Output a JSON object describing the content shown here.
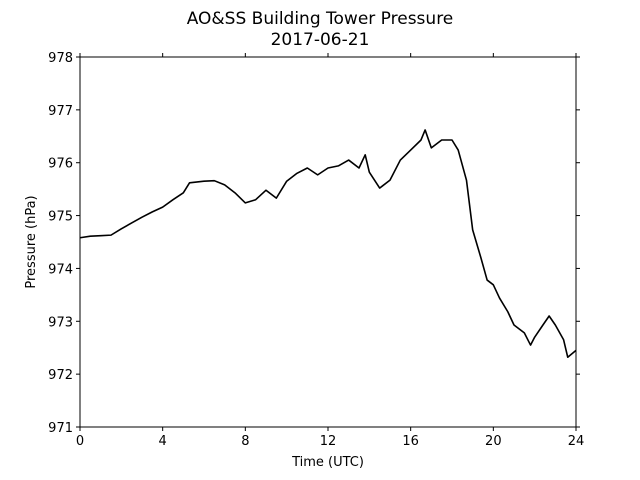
{
  "chart_data": {
    "type": "line",
    "title": "AO&SS Building Tower Pressure",
    "subtitle": "2017-06-21",
    "x_label": "Time (UTC)",
    "y_label": "Pressure (hPa)",
    "color": "#000000",
    "x": [
      0,
      0.5,
      1,
      1.5,
      2,
      2.5,
      3,
      3.5,
      4,
      4.5,
      5,
      5.3,
      6,
      6.5,
      7,
      7.5,
      8,
      8.5,
      9,
      9.5,
      10,
      10.5,
      11,
      11.5,
      12,
      12.5,
      13,
      13.5,
      13.8,
      14,
      14.5,
      15,
      15.5,
      16,
      16.5,
      16.7,
      17,
      17.5,
      18,
      18.3,
      18.7,
      19,
      19.4,
      19.7,
      20,
      20.3,
      20.7,
      21,
      21.5,
      21.8,
      22,
      22.4,
      22.7,
      23,
      23.4,
      23.6,
      24
    ],
    "values": [
      974.58,
      974.61,
      974.62,
      974.63,
      974.75,
      974.86,
      974.97,
      975.07,
      975.16,
      975.3,
      975.43,
      975.62,
      975.65,
      975.66,
      975.58,
      975.43,
      975.24,
      975.3,
      975.48,
      975.33,
      975.65,
      975.8,
      975.9,
      975.77,
      975.9,
      975.94,
      976.05,
      975.9,
      976.15,
      975.82,
      975.52,
      975.67,
      976.05,
      976.24,
      976.43,
      976.62,
      976.28,
      976.43,
      976.43,
      976.24,
      975.67,
      974.73,
      974.2,
      973.78,
      973.69,
      973.44,
      973.18,
      972.93,
      972.78,
      972.55,
      972.7,
      972.93,
      973.1,
      972.93,
      972.65,
      972.32,
      972.45
    ],
    "xlim": [
      0,
      24
    ],
    "xticks": [
      0,
      4,
      8,
      12,
      16,
      20,
      24
    ],
    "ylim": [
      971,
      978
    ],
    "yticks": [
      971,
      972,
      973,
      974,
      975,
      976,
      977,
      978
    ]
  }
}
